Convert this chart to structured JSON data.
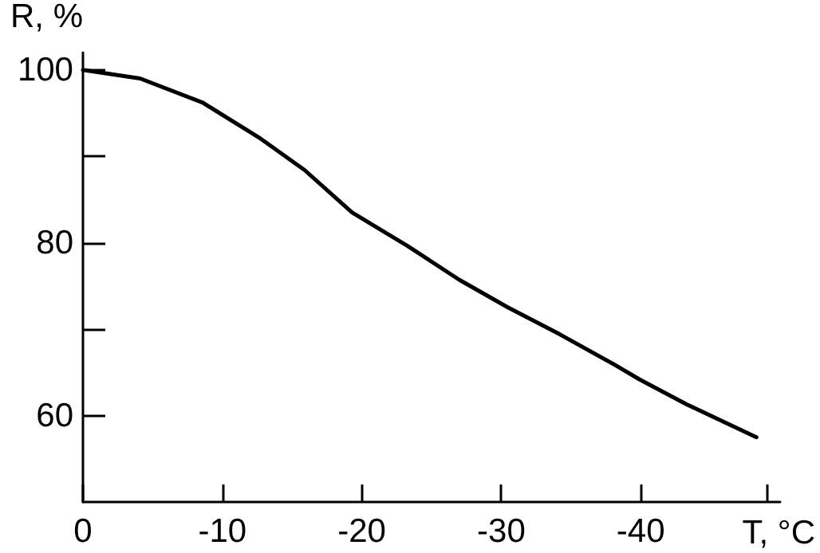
{
  "chart_data": {
    "type": "line",
    "xlabel": "T, °C",
    "ylabel": "R, %",
    "x": [
      0,
      -4.1,
      -8.6,
      -12.6,
      -15.9,
      -19.3,
      -23.3,
      -27,
      -30.5,
      -34.2,
      -38,
      -39.9,
      -43.3,
      -48.3
    ],
    "series": [
      {
        "color": "#000000",
        "values": [
          100,
          99,
          96.2,
          92.2,
          88.4,
          83.5,
          79.6,
          75.7,
          72.5,
          69.4,
          66,
          64.2,
          61.3,
          57.5
        ]
      }
    ],
    "xlim": [
      0,
      -50
    ],
    "xticks": [
      0,
      -10,
      -20,
      -30,
      -40,
      {
        "value": -49,
        "label": null
      }
    ],
    "ylim": [
      50,
      102
    ],
    "yticks": [
      60,
      {
        "value": 70,
        "label": null
      },
      80,
      {
        "value": 90,
        "label": null
      },
      100
    ],
    "marker": "none",
    "line_style": "solid"
  }
}
